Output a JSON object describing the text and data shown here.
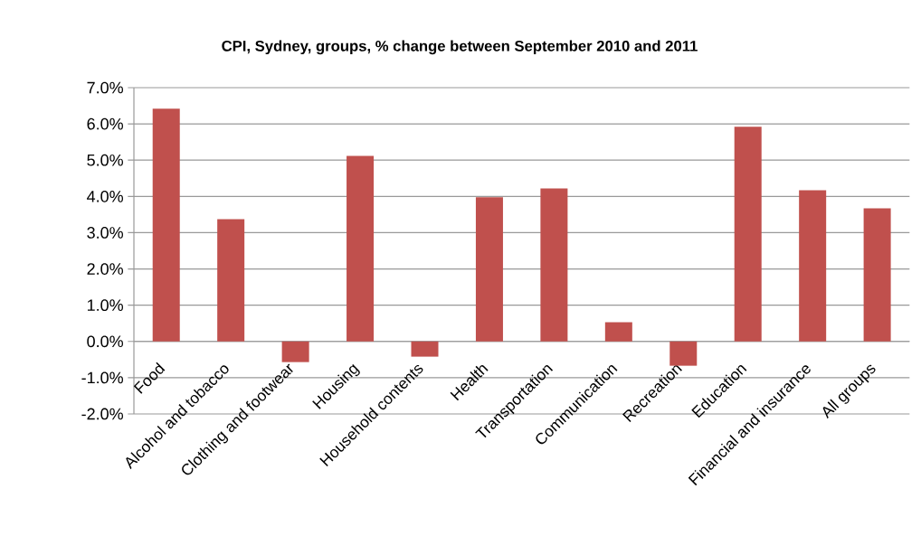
{
  "chart_data": {
    "type": "bar",
    "title": "CPI, Sydney, groups, % change between September 2010 and 2011",
    "categories": [
      "Food",
      "Alcohol and tobacco",
      "Clothing and footwear",
      "Housing",
      "Household contents",
      "Health",
      "Transportation",
      "Communication",
      "Recreation",
      "Education",
      "Financial and insurance",
      "All groups"
    ],
    "values": [
      6.42,
      3.37,
      -0.57,
      5.12,
      -0.42,
      3.98,
      4.22,
      0.53,
      -0.67,
      5.92,
      4.17,
      3.67
    ],
    "color": "#c0504d",
    "ylim": [
      -2,
      7
    ],
    "yticks": [
      {
        "value": -2,
        "label": "-2.0%"
      },
      {
        "value": -1,
        "label": "-1.0%"
      },
      {
        "value": 0,
        "label": "0.0%"
      },
      {
        "value": 1,
        "label": "1.0%"
      },
      {
        "value": 2,
        "label": "2.0%"
      },
      {
        "value": 3,
        "label": "3.0%"
      },
      {
        "value": 4,
        "label": "4.0%"
      },
      {
        "value": 5,
        "label": "5.0%"
      },
      {
        "value": 6,
        "label": "6.0%"
      },
      {
        "value": 7,
        "label": "7.0%"
      }
    ],
    "grid": "y"
  }
}
